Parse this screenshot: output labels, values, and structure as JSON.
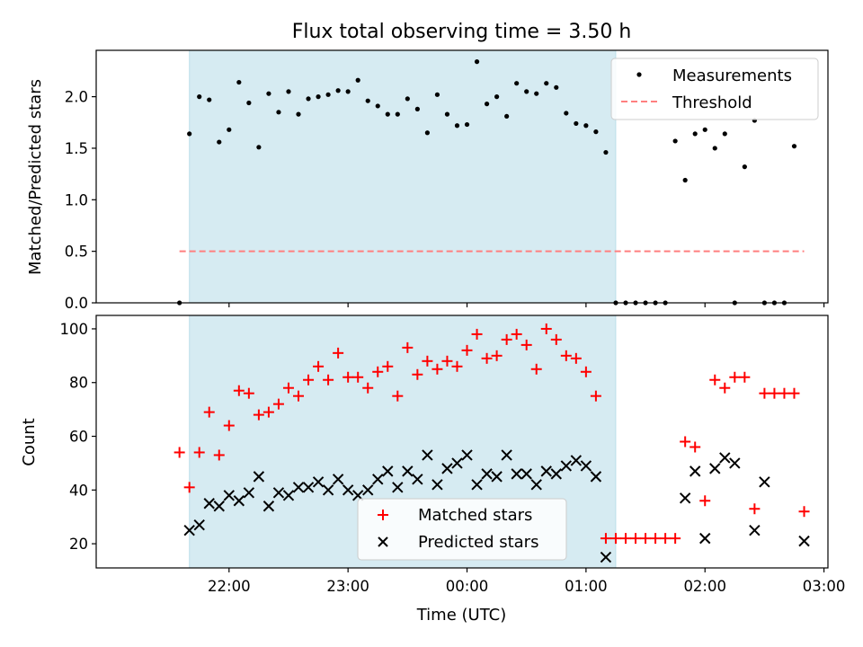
{
  "chart_data": {
    "title": "Flux total observing time = 3.50 h",
    "xlabel": "Time (UTC)",
    "x_tick_labels": [
      "22:00",
      "23:00",
      "00:00",
      "01:00",
      "02:00",
      "03:00"
    ],
    "shaded_interval": [
      "21:40",
      "01:15"
    ],
    "grid": false,
    "panels": [
      {
        "type": "scatter",
        "ylabel": "Matched/Predicted stars",
        "ylim": [
          0,
          2.45
        ],
        "y_ticks": [
          "0.0",
          "0.5",
          "1.0",
          "1.5",
          "2.0"
        ],
        "legend": {
          "placement": "top-right",
          "entries": [
            "Measurements",
            "Threshold"
          ]
        },
        "threshold": {
          "name": "Threshold",
          "value": 0.5,
          "x_range": [
            "21:35",
            "02:50"
          ],
          "color": "#ff7f7f",
          "style": "dashed"
        },
        "series": [
          {
            "name": "Measurements",
            "color": "#000000",
            "marker": "dot",
            "points": [
              [
                "21:35",
                0.0
              ],
              [
                "21:40",
                1.64
              ],
              [
                "21:45",
                2.0
              ],
              [
                "21:50",
                1.97
              ],
              [
                "21:55",
                1.56
              ],
              [
                "22:00",
                1.68
              ],
              [
                "22:05",
                2.14
              ],
              [
                "22:10",
                1.94
              ],
              [
                "22:15",
                1.51
              ],
              [
                "22:20",
                2.03
              ],
              [
                "22:25",
                1.85
              ],
              [
                "22:30",
                2.05
              ],
              [
                "22:35",
                1.83
              ],
              [
                "22:40",
                1.98
              ],
              [
                "22:45",
                2.0
              ],
              [
                "22:50",
                2.02
              ],
              [
                "22:55",
                2.06
              ],
              [
                "23:00",
                2.05
              ],
              [
                "23:05",
                2.16
              ],
              [
                "23:10",
                1.96
              ],
              [
                "23:15",
                1.91
              ],
              [
                "23:20",
                1.83
              ],
              [
                "23:25",
                1.83
              ],
              [
                "23:30",
                1.98
              ],
              [
                "23:35",
                1.88
              ],
              [
                "23:40",
                1.65
              ],
              [
                "23:45",
                2.02
              ],
              [
                "23:50",
                1.83
              ],
              [
                "23:55",
                1.72
              ],
              [
                "00:00",
                1.73
              ],
              [
                "00:05",
                2.34
              ],
              [
                "00:10",
                1.93
              ],
              [
                "00:15",
                2.0
              ],
              [
                "00:20",
                1.81
              ],
              [
                "00:25",
                2.13
              ],
              [
                "00:30",
                2.05
              ],
              [
                "00:35",
                2.03
              ],
              [
                "00:40",
                2.13
              ],
              [
                "00:45",
                2.09
              ],
              [
                "00:50",
                1.84
              ],
              [
                "00:55",
                1.74
              ],
              [
                "01:00",
                1.72
              ],
              [
                "01:05",
                1.66
              ],
              [
                "01:10",
                1.46
              ],
              [
                "01:15",
                0.0
              ],
              [
                "01:20",
                0.0
              ],
              [
                "01:25",
                0.0
              ],
              [
                "01:30",
                0.0
              ],
              [
                "01:35",
                0.0
              ],
              [
                "01:40",
                0.0
              ],
              [
                "01:45",
                1.57
              ],
              [
                "01:50",
                1.19
              ],
              [
                "01:55",
                1.64
              ],
              [
                "02:00",
                1.68
              ],
              [
                "02:05",
                1.5
              ],
              [
                "02:10",
                1.64
              ],
              [
                "02:15",
                0.0
              ],
              [
                "02:20",
                1.32
              ],
              [
                "02:25",
                1.77
              ],
              [
                "02:30",
                0.0
              ],
              [
                "02:35",
                0.0
              ],
              [
                "02:40",
                0.0
              ],
              [
                "02:45",
                1.52
              ]
            ]
          }
        ]
      },
      {
        "type": "scatter",
        "ylabel": "Count",
        "ylim": [
          11,
          105
        ],
        "y_ticks": [
          "20",
          "40",
          "60",
          "80",
          "100"
        ],
        "legend": {
          "placement": "lower-center",
          "entries": [
            "Matched stars",
            "Predicted stars"
          ]
        },
        "series": [
          {
            "name": "Matched stars",
            "color": "#ff0000",
            "marker": "plus",
            "points": [
              [
                "21:35",
                54
              ],
              [
                "21:40",
                41
              ],
              [
                "21:45",
                54
              ],
              [
                "21:50",
                69
              ],
              [
                "21:55",
                53
              ],
              [
                "22:00",
                64
              ],
              [
                "22:05",
                77
              ],
              [
                "22:10",
                76
              ],
              [
                "22:15",
                68
              ],
              [
                "22:20",
                69
              ],
              [
                "22:25",
                72
              ],
              [
                "22:30",
                78
              ],
              [
                "22:35",
                75
              ],
              [
                "22:40",
                81
              ],
              [
                "22:45",
                86
              ],
              [
                "22:50",
                81
              ],
              [
                "22:55",
                91
              ],
              [
                "23:00",
                82
              ],
              [
                "23:05",
                82
              ],
              [
                "23:10",
                78
              ],
              [
                "23:15",
                84
              ],
              [
                "23:20",
                86
              ],
              [
                "23:25",
                75
              ],
              [
                "23:30",
                93
              ],
              [
                "23:35",
                83
              ],
              [
                "23:40",
                88
              ],
              [
                "23:45",
                85
              ],
              [
                "23:50",
                88
              ],
              [
                "23:55",
                86
              ],
              [
                "00:00",
                92
              ],
              [
                "00:05",
                98
              ],
              [
                "00:10",
                89
              ],
              [
                "00:15",
                90
              ],
              [
                "00:20",
                96
              ],
              [
                "00:25",
                98
              ],
              [
                "00:30",
                94
              ],
              [
                "00:35",
                85
              ],
              [
                "00:40",
                100
              ],
              [
                "00:45",
                96
              ],
              [
                "00:50",
                90
              ],
              [
                "00:55",
                89
              ],
              [
                "01:00",
                84
              ],
              [
                "01:05",
                75
              ],
              [
                "01:10",
                22
              ],
              [
                "01:15",
                22
              ],
              [
                "01:20",
                22
              ],
              [
                "01:25",
                22
              ],
              [
                "01:30",
                22
              ],
              [
                "01:35",
                22
              ],
              [
                "01:40",
                22
              ],
              [
                "01:45",
                22
              ],
              [
                "01:50",
                58
              ],
              [
                "01:55",
                56
              ],
              [
                "02:00",
                36
              ],
              [
                "02:05",
                81
              ],
              [
                "02:10",
                78
              ],
              [
                "02:15",
                82
              ],
              [
                "02:20",
                82
              ],
              [
                "02:25",
                33
              ],
              [
                "02:30",
                76
              ],
              [
                "02:35",
                76
              ],
              [
                "02:40",
                76
              ],
              [
                "02:45",
                76
              ],
              [
                "02:50",
                32
              ]
            ]
          },
          {
            "name": "Predicted stars",
            "color": "#000000",
            "marker": "x",
            "points": [
              [
                "21:40",
                25
              ],
              [
                "21:45",
                27
              ],
              [
                "21:50",
                35
              ],
              [
                "21:55",
                34
              ],
              [
                "22:00",
                38
              ],
              [
                "22:05",
                36
              ],
              [
                "22:10",
                39
              ],
              [
                "22:15",
                45
              ],
              [
                "22:20",
                34
              ],
              [
                "22:25",
                39
              ],
              [
                "22:30",
                38
              ],
              [
                "22:35",
                41
              ],
              [
                "22:40",
                41
              ],
              [
                "22:45",
                43
              ],
              [
                "22:50",
                40
              ],
              [
                "22:55",
                44
              ],
              [
                "23:00",
                40
              ],
              [
                "23:05",
                38
              ],
              [
                "23:10",
                40
              ],
              [
                "23:15",
                44
              ],
              [
                "23:20",
                47
              ],
              [
                "23:25",
                41
              ],
              [
                "23:30",
                47
              ],
              [
                "23:35",
                44
              ],
              [
                "23:40",
                53
              ],
              [
                "23:45",
                42
              ],
              [
                "23:50",
                48
              ],
              [
                "23:55",
                50
              ],
              [
                "00:00",
                53
              ],
              [
                "00:05",
                42
              ],
              [
                "00:10",
                46
              ],
              [
                "00:15",
                45
              ],
              [
                "00:20",
                53
              ],
              [
                "00:25",
                46
              ],
              [
                "00:30",
                46
              ],
              [
                "00:35",
                42
              ],
              [
                "00:40",
                47
              ],
              [
                "00:45",
                46
              ],
              [
                "00:50",
                49
              ],
              [
                "00:55",
                51
              ],
              [
                "01:00",
                49
              ],
              [
                "01:05",
                45
              ],
              [
                "01:10",
                15
              ],
              [
                "01:50",
                37
              ],
              [
                "01:55",
                47
              ],
              [
                "02:00",
                22
              ],
              [
                "02:05",
                48
              ],
              [
                "02:10",
                52
              ],
              [
                "02:15",
                50
              ],
              [
                "02:25",
                25
              ],
              [
                "02:30",
                43
              ],
              [
                "02:50",
                21
              ]
            ]
          }
        ]
      }
    ]
  },
  "colors": {
    "shade": "#add8e6",
    "threshold": "#ff7f7f",
    "matched": "#ff0000",
    "predicted": "#000000"
  }
}
